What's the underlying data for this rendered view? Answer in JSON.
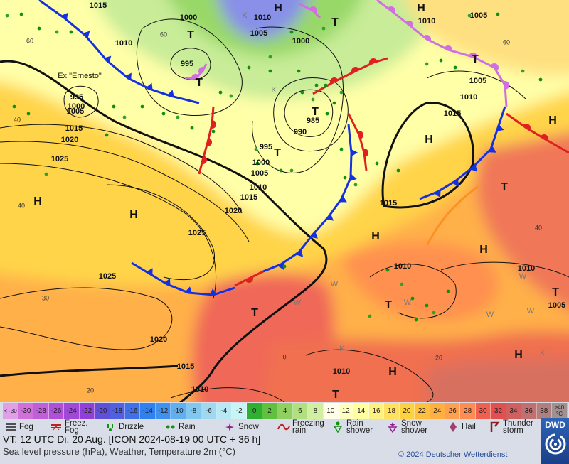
{
  "map": {
    "pressure_labels": [
      1015,
      1000,
      1010,
      1010,
      1005,
      1005,
      1000,
      1010,
      995,
      995,
      1000,
      1005,
      1005,
      1010,
      1015,
      985,
      990,
      1015,
      1020,
      995,
      1000,
      1005,
      1010,
      1015,
      1025,
      1020,
      1015,
      1025,
      1010,
      1010,
      1025,
      1005,
      1020,
      1015,
      1010,
      1010
    ],
    "pressure_centers": [
      "H",
      "H",
      "T",
      "T",
      "T",
      "T",
      "T",
      "T",
      "H",
      "H",
      "H",
      "T",
      "H",
      "H",
      "H",
      "T",
      "T",
      "T",
      "H",
      "H",
      "T"
    ],
    "grid_labels": [
      60,
      60,
      60,
      40,
      40,
      40,
      30,
      20,
      20,
      0
    ],
    "weather_letters": [
      "K",
      "K",
      "W",
      "W",
      "W",
      "W",
      "W",
      "W",
      "K",
      "K"
    ],
    "storm_name": "Ex \"Ernesto\""
  },
  "temperature_scale": {
    "labels": [
      "< -30",
      -30,
      -28,
      -26,
      -24,
      -22,
      -20,
      -18,
      -16,
      -14,
      -12,
      -10,
      -8,
      -6,
      -4,
      -2,
      0,
      2,
      4,
      6,
      8,
      10,
      12,
      14,
      16,
      18,
      20,
      22,
      24,
      26,
      28,
      30,
      32,
      34,
      36,
      38,
      "≥40 °C"
    ],
    "colors": [
      "#e0a0e8",
      "#d070d8",
      "#c060d8",
      "#b050d8",
      "#a048d8",
      "#9040d8",
      "#6050d8",
      "#5060e0",
      "#4070e8",
      "#3080f0",
      "#4090f0",
      "#60b0f0",
      "#80c8f0",
      "#a0d8f0",
      "#b8e8f4",
      "#c8f4f4",
      "#30b030",
      "#60c040",
      "#90d060",
      "#b0e080",
      "#d0f0a0",
      "#ffffe8",
      "#ffffc0",
      "#ffffa0",
      "#fff080",
      "#ffe060",
      "#ffd040",
      "#ffc040",
      "#ffb040",
      "#ffa050",
      "#ff8c50",
      "#f06050",
      "#e05050",
      "#d06060",
      "#c07070",
      "#b08080",
      "#a09090"
    ]
  },
  "weather_legend": [
    "Fog",
    "Freez. Fog",
    "Drizzle",
    "Rain",
    "Snow",
    "Freezing rain",
    "Rain shower",
    "Snow shower",
    "Hail",
    "Thunder storm"
  ],
  "footer": {
    "valid_time": "VT: 12 UTC Di.  20 Aug. [ICON 2024-08-19  00 UTC + 36 h]",
    "subtitle": "Sea level pressure (hPa), Weather, Temperature 2m (°C)",
    "copyright": "© 2024 Deutscher Wetterdienst",
    "logo": "DWD"
  }
}
